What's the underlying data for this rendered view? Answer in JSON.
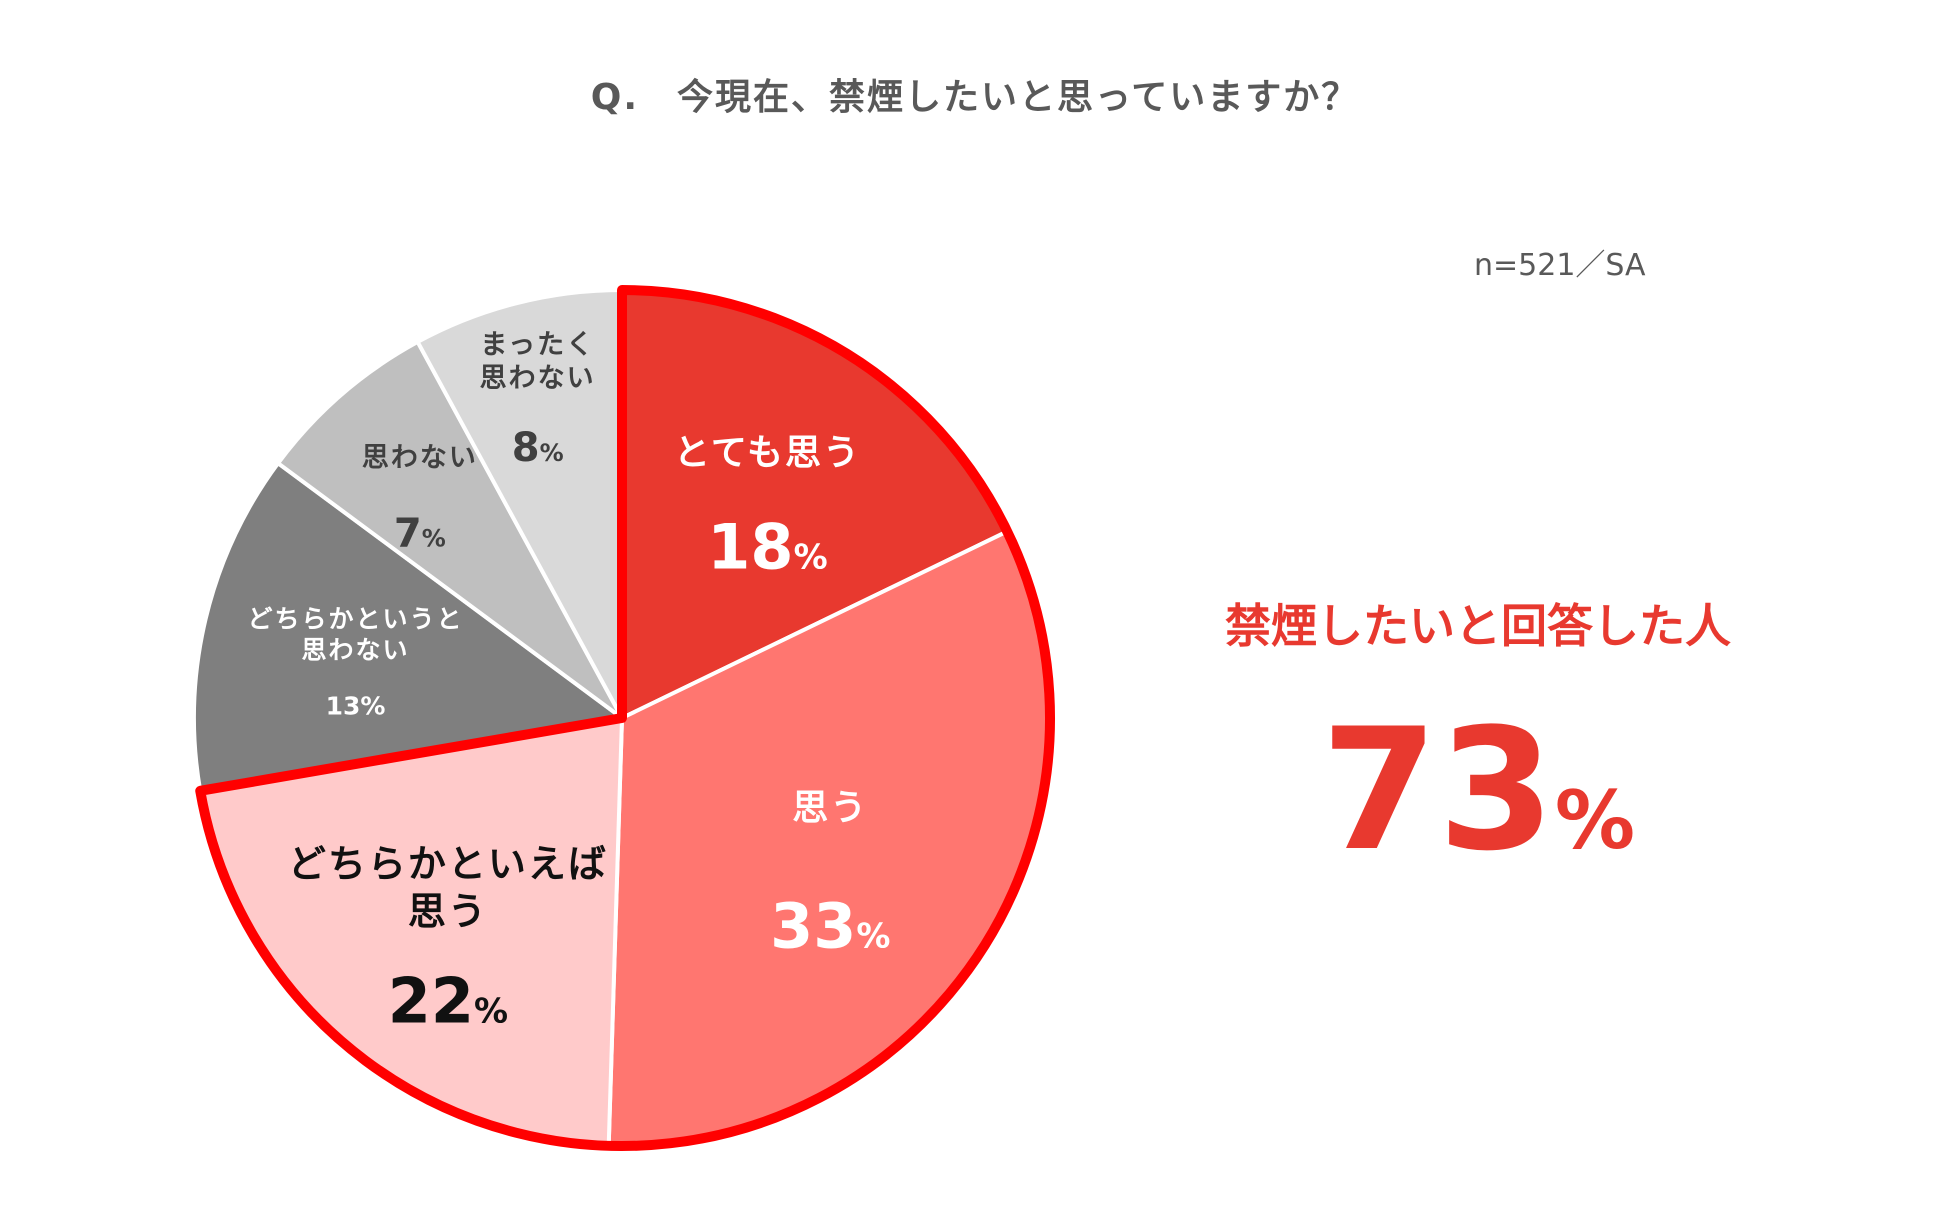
{
  "title": "Q.　今現在、禁煙したいと思っていますか？",
  "note": "n=521／SA",
  "summary": {
    "label": "禁煙したいと回答した人",
    "value": "73",
    "unit": "%"
  },
  "chart_data": {
    "type": "pie",
    "title": "Q.　今現在、禁煙したいと思っていますか？",
    "unit": "%",
    "highlight_label": "禁煙したい",
    "highlight_total": 73,
    "slices": [
      {
        "id": "totemo",
        "label_lines": [
          "とても思う"
        ],
        "value": 18,
        "color": "#e8392f",
        "text_color": "#ffffff",
        "highlight": true
      },
      {
        "id": "omou",
        "label_lines": [
          "思う"
        ],
        "value": 33,
        "color": "#ff7670",
        "text_color": "#ffffff",
        "highlight": true
      },
      {
        "id": "dochiraka-omou",
        "label_lines": [
          "どちらかといえば",
          "思う"
        ],
        "value": 22,
        "color": "#ffcaca",
        "text_color": "#111111",
        "highlight": true
      },
      {
        "id": "dochiraka-omowanai",
        "label_lines": [
          "どちらかというと",
          "思わない"
        ],
        "value": 13,
        "color": "#7f7f7f",
        "text_color": "#ffffff",
        "highlight": false
      },
      {
        "id": "omowanai",
        "label_lines": [
          "思わない"
        ],
        "value": 7,
        "color": "#bfbfbf",
        "text_color": "#404040",
        "highlight": false
      },
      {
        "id": "mattaku",
        "label_lines": [
          "まったく",
          "思わない"
        ],
        "value": 8,
        "color": "#d9d9d9",
        "text_color": "#404040",
        "highlight": false
      }
    ]
  }
}
